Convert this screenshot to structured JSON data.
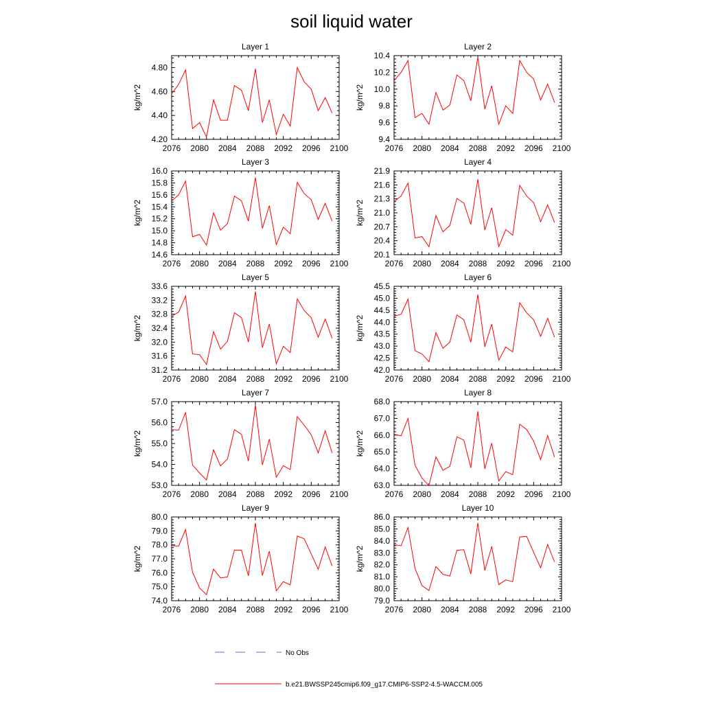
{
  "title": "soil liquid water",
  "colors": {
    "model_line": "#ff0000",
    "obs_line": "#6a6adb",
    "axis": "#000000"
  },
  "legend": {
    "obs_label": "No Obs",
    "model_label": "b.e21.BWSSP245cmip6.f09_g17.CMIP6-SSP2-4.5-WACCM.005"
  },
  "chart_data": [
    {
      "type": "line",
      "title": "Layer 1",
      "xlabel": "",
      "ylabel": "kg/m^2",
      "xlim": [
        2076,
        2100
      ],
      "ylim": [
        4.2,
        4.9
      ],
      "x_ticks": [
        "2076",
        "2080",
        "2084",
        "2088",
        "2092",
        "2096",
        "2100"
      ],
      "y_ticks": [
        "4.20",
        "4.40",
        "4.60",
        "4.80"
      ],
      "y_tick_values": [
        4.2,
        4.4,
        4.6,
        4.8
      ],
      "x": [
        2076,
        2077,
        2078,
        2079,
        2080,
        2081,
        2082,
        2083,
        2084,
        2085,
        2086,
        2087,
        2088,
        2089,
        2090,
        2091,
        2092,
        2093,
        2094,
        2095,
        2096,
        2097,
        2098,
        2099
      ],
      "values": [
        4.58,
        4.66,
        4.78,
        4.29,
        4.34,
        4.22,
        4.53,
        4.36,
        4.36,
        4.65,
        4.61,
        4.44,
        4.79,
        4.34,
        4.53,
        4.24,
        4.41,
        4.31,
        4.8,
        4.68,
        4.62,
        4.44,
        4.55,
        4.42
      ]
    },
    {
      "type": "line",
      "title": "Layer 2",
      "xlabel": "",
      "ylabel": "kg/m^2",
      "xlim": [
        2076,
        2100
      ],
      "ylim": [
        9.4,
        10.4
      ],
      "x_ticks": [
        "2076",
        "2080",
        "2084",
        "2088",
        "2092",
        "2096",
        "2100"
      ],
      "y_ticks": [
        "9.4",
        "9.6",
        "9.8",
        "10.0",
        "10.2",
        "10.4"
      ],
      "y_tick_values": [
        9.4,
        9.6,
        9.8,
        10.0,
        10.2,
        10.4
      ],
      "x": [
        2076,
        2077,
        2078,
        2079,
        2080,
        2081,
        2082,
        2083,
        2084,
        2085,
        2086,
        2087,
        2088,
        2089,
        2090,
        2091,
        2092,
        2093,
        2094,
        2095,
        2096,
        2097,
        2098,
        2099
      ],
      "values": [
        10.1,
        10.2,
        10.34,
        9.66,
        9.71,
        9.58,
        9.96,
        9.75,
        9.81,
        10.17,
        10.1,
        9.86,
        10.38,
        9.76,
        10.04,
        9.58,
        9.8,
        9.71,
        10.34,
        10.2,
        10.12,
        9.87,
        10.06,
        9.84
      ]
    },
    {
      "type": "line",
      "title": "Layer 3",
      "xlabel": "",
      "ylabel": "kg/m^2",
      "xlim": [
        2076,
        2100
      ],
      "ylim": [
        14.6,
        16.0
      ],
      "x_ticks": [
        "2076",
        "2080",
        "2084",
        "2088",
        "2092",
        "2096",
        "2100"
      ],
      "y_ticks": [
        "14.6",
        "14.8",
        "15.0",
        "15.2",
        "15.4",
        "15.6",
        "15.8",
        "16.0"
      ],
      "y_tick_values": [
        14.6,
        14.8,
        15.0,
        15.2,
        15.4,
        15.6,
        15.8,
        16.0
      ],
      "x": [
        2076,
        2077,
        2078,
        2079,
        2080,
        2081,
        2082,
        2083,
        2084,
        2085,
        2086,
        2087,
        2088,
        2089,
        2090,
        2091,
        2092,
        2093,
        2094,
        2095,
        2096,
        2097,
        2098,
        2099
      ],
      "values": [
        15.5,
        15.6,
        15.83,
        14.9,
        14.94,
        14.76,
        15.3,
        15.01,
        15.12,
        15.58,
        15.5,
        15.16,
        15.89,
        15.04,
        15.42,
        14.77,
        15.06,
        14.95,
        15.81,
        15.62,
        15.52,
        15.19,
        15.46,
        15.16
      ]
    },
    {
      "type": "line",
      "title": "Layer 4",
      "xlabel": "",
      "ylabel": "kg/m^2",
      "xlim": [
        2076,
        2100
      ],
      "ylim": [
        20.1,
        21.9
      ],
      "x_ticks": [
        "2076",
        "2080",
        "2084",
        "2088",
        "2092",
        "2096",
        "2100"
      ],
      "y_ticks": [
        "20.1",
        "20.4",
        "20.7",
        "21.0",
        "21.3",
        "21.6",
        "21.9"
      ],
      "y_tick_values": [
        20.1,
        20.4,
        20.7,
        21.0,
        21.3,
        21.6,
        21.9
      ],
      "x": [
        2076,
        2077,
        2078,
        2079,
        2080,
        2081,
        2082,
        2083,
        2084,
        2085,
        2086,
        2087,
        2088,
        2089,
        2090,
        2091,
        2092,
        2093,
        2094,
        2095,
        2096,
        2097,
        2098,
        2099
      ],
      "values": [
        21.24,
        21.36,
        21.64,
        20.46,
        20.49,
        20.27,
        20.94,
        20.59,
        20.73,
        21.31,
        21.21,
        20.75,
        21.72,
        20.63,
        21.11,
        20.27,
        20.64,
        20.52,
        21.59,
        21.36,
        21.22,
        20.81,
        21.17,
        20.79
      ]
    },
    {
      "type": "line",
      "title": "Layer 5",
      "xlabel": "",
      "ylabel": "kg/m^2",
      "xlim": [
        2076,
        2100
      ],
      "ylim": [
        31.2,
        33.6
      ],
      "x_ticks": [
        "2076",
        "2080",
        "2084",
        "2088",
        "2092",
        "2096",
        "2100"
      ],
      "y_ticks": [
        "31.2",
        "31.6",
        "32.0",
        "32.4",
        "32.8",
        "33.2",
        "33.6"
      ],
      "y_tick_values": [
        31.2,
        31.6,
        32.0,
        32.4,
        32.8,
        33.2,
        33.6
      ],
      "x": [
        2076,
        2077,
        2078,
        2079,
        2080,
        2081,
        2082,
        2083,
        2084,
        2085,
        2086,
        2087,
        2088,
        2089,
        2090,
        2091,
        2092,
        2093,
        2094,
        2095,
        2096,
        2097,
        2098,
        2099
      ],
      "values": [
        32.74,
        32.86,
        33.32,
        31.66,
        31.64,
        31.36,
        32.3,
        31.8,
        32.02,
        32.84,
        32.7,
        32.0,
        33.45,
        31.84,
        32.52,
        31.38,
        31.88,
        31.7,
        33.24,
        32.9,
        32.7,
        32.14,
        32.66,
        32.11
      ]
    },
    {
      "type": "line",
      "title": "Layer 6",
      "xlabel": "",
      "ylabel": "kg/m^2",
      "xlim": [
        2076,
        2100
      ],
      "ylim": [
        42.0,
        45.5
      ],
      "x_ticks": [
        "2076",
        "2080",
        "2084",
        "2088",
        "2092",
        "2096",
        "2100"
      ],
      "y_ticks": [
        "42.0",
        "42.5",
        "43.0",
        "43.5",
        "44.0",
        "44.5",
        "45.0",
        "45.5"
      ],
      "y_tick_values": [
        42.0,
        42.5,
        43.0,
        43.5,
        44.0,
        44.5,
        45.0,
        45.5
      ],
      "x": [
        2076,
        2077,
        2078,
        2079,
        2080,
        2081,
        2082,
        2083,
        2084,
        2085,
        2086,
        2087,
        2088,
        2089,
        2090,
        2091,
        2092,
        2093,
        2094,
        2095,
        2096,
        2097,
        2098,
        2099
      ],
      "values": [
        44.25,
        44.33,
        44.96,
        42.81,
        42.67,
        42.35,
        43.56,
        42.91,
        43.17,
        44.3,
        44.1,
        43.16,
        45.16,
        42.97,
        43.92,
        42.41,
        42.96,
        42.76,
        44.81,
        44.39,
        44.1,
        43.41,
        44.16,
        43.37
      ]
    },
    {
      "type": "line",
      "title": "Layer 7",
      "xlabel": "",
      "ylabel": "kg/m^2",
      "xlim": [
        2076,
        2100
      ],
      "ylim": [
        53.0,
        57.0
      ],
      "x_ticks": [
        "2076",
        "2080",
        "2084",
        "2088",
        "2092",
        "2096",
        "2100"
      ],
      "y_ticks": [
        "53.0",
        "54.0",
        "55.0",
        "56.0",
        "57.0"
      ],
      "y_tick_values": [
        53.0,
        54.0,
        55.0,
        56.0,
        57.0
      ],
      "x": [
        2076,
        2077,
        2078,
        2079,
        2080,
        2081,
        2082,
        2083,
        2084,
        2085,
        2086,
        2087,
        2088,
        2089,
        2090,
        2091,
        2092,
        2093,
        2094,
        2095,
        2096,
        2097,
        2098,
        2099
      ],
      "values": [
        55.67,
        55.64,
        56.49,
        53.97,
        53.59,
        53.26,
        54.7,
        53.93,
        54.26,
        55.66,
        55.44,
        54.16,
        56.83,
        53.98,
        55.21,
        53.39,
        53.94,
        53.75,
        56.29,
        55.87,
        55.42,
        54.55,
        55.61,
        54.55
      ]
    },
    {
      "type": "line",
      "title": "Layer 8",
      "xlabel": "",
      "ylabel": "kg/m^2",
      "xlim": [
        2076,
        2100
      ],
      "ylim": [
        63.0,
        68.0
      ],
      "x_ticks": [
        "2076",
        "2080",
        "2084",
        "2088",
        "2092",
        "2096",
        "2100"
      ],
      "y_ticks": [
        "63.0",
        "64.0",
        "65.0",
        "66.0",
        "67.0",
        "68.0"
      ],
      "y_tick_values": [
        63.0,
        64.0,
        65.0,
        66.0,
        67.0,
        68.0
      ],
      "x": [
        2076,
        2077,
        2078,
        2079,
        2080,
        2081,
        2082,
        2083,
        2084,
        2085,
        2086,
        2087,
        2088,
        2089,
        2090,
        2091,
        2092,
        2093,
        2094,
        2095,
        2096,
        2097,
        2098,
        2099
      ],
      "values": [
        66.05,
        65.96,
        66.99,
        64.2,
        63.43,
        62.99,
        64.7,
        63.9,
        64.14,
        65.9,
        65.7,
        64.05,
        67.42,
        63.98,
        65.52,
        63.26,
        63.82,
        63.64,
        66.65,
        66.33,
        65.64,
        64.54,
        65.97,
        64.69
      ]
    },
    {
      "type": "line",
      "title": "Layer 9",
      "xlabel": "",
      "ylabel": "kg/m^2",
      "xlim": [
        2076,
        2100
      ],
      "ylim": [
        74.0,
        80.0
      ],
      "x_ticks": [
        "2076",
        "2080",
        "2084",
        "2088",
        "2092",
        "2096",
        "2100"
      ],
      "y_ticks": [
        "74.0",
        "75.0",
        "76.0",
        "77.0",
        "78.0",
        "79.0",
        "80.0"
      ],
      "y_tick_values": [
        74.0,
        75.0,
        76.0,
        77.0,
        78.0,
        79.0,
        80.0
      ],
      "x": [
        2076,
        2077,
        2078,
        2079,
        2080,
        2081,
        2082,
        2083,
        2084,
        2085,
        2086,
        2087,
        2088,
        2089,
        2090,
        2091,
        2092,
        2093,
        2094,
        2095,
        2096,
        2097,
        2098,
        2099
      ],
      "values": [
        77.95,
        77.91,
        79.1,
        76.03,
        74.91,
        74.43,
        76.26,
        75.64,
        75.7,
        77.63,
        77.62,
        75.78,
        79.56,
        75.8,
        77.55,
        74.71,
        75.36,
        75.13,
        78.64,
        78.43,
        77.35,
        76.26,
        77.85,
        76.49
      ]
    },
    {
      "type": "line",
      "title": "Layer 10",
      "xlabel": "",
      "ylabel": "kg/m^2",
      "xlim": [
        2076,
        2100
      ],
      "ylim": [
        79.0,
        86.0
      ],
      "x_ticks": [
        "2076",
        "2080",
        "2084",
        "2088",
        "2092",
        "2096",
        "2100"
      ],
      "y_ticks": [
        "79.0",
        "80.0",
        "81.0",
        "82.0",
        "83.0",
        "84.0",
        "85.0",
        "86.0"
      ],
      "y_tick_values": [
        79.0,
        80.0,
        81.0,
        82.0,
        83.0,
        84.0,
        85.0,
        86.0
      ],
      "x": [
        2076,
        2077,
        2078,
        2079,
        2080,
        2081,
        2082,
        2083,
        2084,
        2085,
        2086,
        2087,
        2088,
        2089,
        2090,
        2091,
        2092,
        2093,
        2094,
        2095,
        2096,
        2097,
        2098,
        2099
      ],
      "values": [
        83.68,
        83.59,
        85.11,
        81.71,
        80.26,
        79.85,
        81.85,
        81.21,
        81.05,
        83.21,
        83.26,
        81.24,
        85.5,
        81.52,
        83.54,
        80.34,
        80.74,
        80.59,
        84.33,
        84.37,
        83.05,
        81.76,
        83.7,
        82.24
      ]
    }
  ]
}
